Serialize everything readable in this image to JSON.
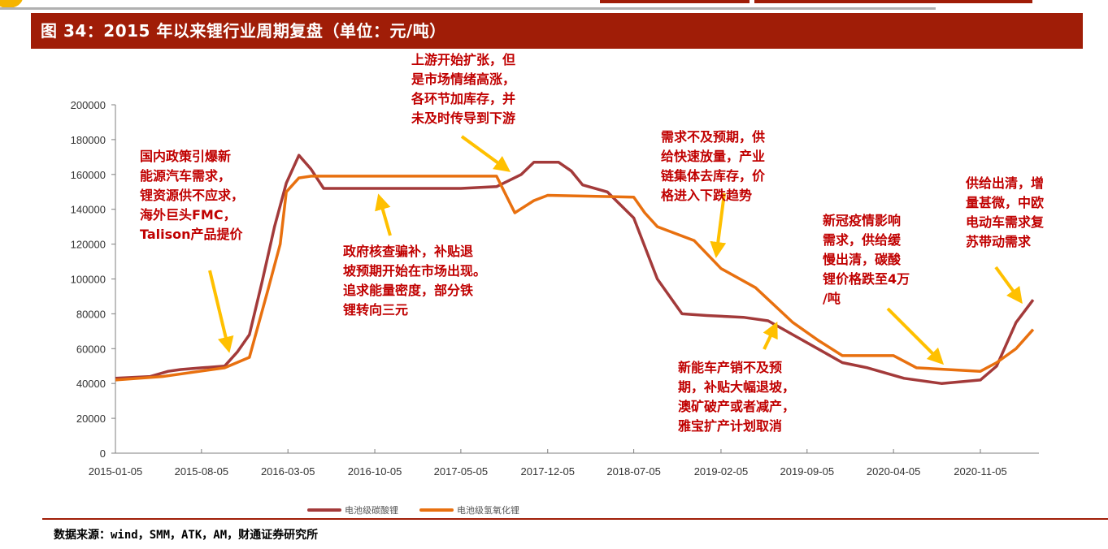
{
  "header": {
    "title": "图 34：2015 年以来锂行业周期复盘（单位：元/吨）"
  },
  "colors": {
    "title_bar": "#a01d07",
    "series_carbonate": "#a33a3a",
    "series_hydroxide": "#e8700f",
    "arrow": "#ffc000",
    "annotation_text": "#c00000"
  },
  "chart_data": {
    "type": "line",
    "title": "2015 年以来锂行业周期复盘（单位：元/吨）",
    "xlabel": "",
    "ylabel": "",
    "ylim": [
      0,
      200000
    ],
    "yticks": [
      0,
      20000,
      40000,
      60000,
      80000,
      100000,
      120000,
      140000,
      160000,
      180000,
      200000
    ],
    "categories": [
      "2015-01-05",
      "2015-08-05",
      "2016-03-05",
      "2016-10-05",
      "2017-05-05",
      "2017-12-05",
      "2018-07-05",
      "2019-02-05",
      "2019-09-05",
      "2020-04-05",
      "2020-11-05"
    ],
    "grid": false,
    "legend_position": "bottom",
    "series": [
      {
        "name": "电池级碳酸锂",
        "points": [
          [
            "2015-01-05",
            43000
          ],
          [
            "2015-04-01",
            44000
          ],
          [
            "2015-05-15",
            47000
          ],
          [
            "2015-06-15",
            48000
          ],
          [
            "2015-08-05",
            49000
          ],
          [
            "2015-10-01",
            50000
          ],
          [
            "2015-11-01",
            58000
          ],
          [
            "2015-12-01",
            68000
          ],
          [
            "2016-01-01",
            98000
          ],
          [
            "2016-02-01",
            130000
          ],
          [
            "2016-03-01",
            155000
          ],
          [
            "2016-04-01",
            171000
          ],
          [
            "2016-05-01",
            163000
          ],
          [
            "2016-06-01",
            152000
          ],
          [
            "2017-05-05",
            152000
          ],
          [
            "2017-08-01",
            153000
          ],
          [
            "2017-10-01",
            160000
          ],
          [
            "2017-11-01",
            167000
          ],
          [
            "2018-01-01",
            167000
          ],
          [
            "2018-02-01",
            162000
          ],
          [
            "2018-03-01",
            154000
          ],
          [
            "2018-05-01",
            150000
          ],
          [
            "2018-07-05",
            135000
          ],
          [
            "2018-09-01",
            100000
          ],
          [
            "2018-11-01",
            80000
          ],
          [
            "2019-01-01",
            79000
          ],
          [
            "2019-04-01",
            78000
          ],
          [
            "2019-06-01",
            76000
          ],
          [
            "2019-08-01",
            68000
          ],
          [
            "2019-10-01",
            60000
          ],
          [
            "2019-12-01",
            52000
          ],
          [
            "2020-02-01",
            49000
          ],
          [
            "2020-05-01",
            43000
          ],
          [
            "2020-08-01",
            40000
          ],
          [
            "2020-11-05",
            42000
          ],
          [
            "2020-12-15",
            50000
          ],
          [
            "2021-02-01",
            75000
          ],
          [
            "2021-03-15",
            88000
          ]
        ]
      },
      {
        "name": "电池级氢氧化锂",
        "points": [
          [
            "2015-01-05",
            42000
          ],
          [
            "2015-05-01",
            44000
          ],
          [
            "2015-07-01",
            46000
          ],
          [
            "2015-10-01",
            49000
          ],
          [
            "2015-12-01",
            55000
          ],
          [
            "2016-01-15",
            93000
          ],
          [
            "2016-02-15",
            120000
          ],
          [
            "2016-03-01",
            150000
          ],
          [
            "2016-04-01",
            158000
          ],
          [
            "2016-05-01",
            159000
          ],
          [
            "2017-08-01",
            159000
          ],
          [
            "2017-09-15",
            138000
          ],
          [
            "2017-11-01",
            145000
          ],
          [
            "2017-12-05",
            148000
          ],
          [
            "2018-07-05",
            147000
          ],
          [
            "2018-08-01",
            138000
          ],
          [
            "2018-09-01",
            130000
          ],
          [
            "2018-12-01",
            122000
          ],
          [
            "2019-02-05",
            106000
          ],
          [
            "2019-05-01",
            95000
          ],
          [
            "2019-08-01",
            75000
          ],
          [
            "2019-10-01",
            65000
          ],
          [
            "2019-12-01",
            56000
          ],
          [
            "2020-04-05",
            56000
          ],
          [
            "2020-06-01",
            49000
          ],
          [
            "2020-11-05",
            47000
          ],
          [
            "2020-12-15",
            52000
          ],
          [
            "2021-02-01",
            60000
          ],
          [
            "2021-03-15",
            71000
          ]
        ]
      }
    ],
    "annotations": [
      "国内政策引爆新能源汽车需求，锂资源供不应求，海外巨头FMC，Talison产品提价",
      "政府核查骗补，补贴退坡预期开始在市场出现。追求能量密度，部分铁锂转向三元",
      "上游开始扩张，但是市场情绪高涨，各环节加库存，并未及时传导到下游",
      "需求不及预期，供给快速放量，产业链集体去库存，价格进入下跌趋势",
      "新能车产销不及预期，补贴大幅退坡，澳矿破产或者减产，雅宝扩产计划取消",
      "新冠疫情影响需求，供给缓慢出清，碳酸锂价格跌至4万/吨",
      "供给出清，增量甚微，中欧电动车需求复苏带动需求"
    ]
  },
  "annotations": {
    "a1": "国内政策引爆新\n能源汽车需求，\n锂资源供不应求，\n海外巨头FMC，\nTalison产品提价",
    "a2": "政府核查骗补，补贴退\n坡预期开始在市场出现。\n追求能量密度，部分铁\n锂转向三元",
    "a3": "上游开始扩张，但\n是市场情绪高涨，\n各环节加库存，并\n未及时传导到下游",
    "a4": "需求不及预期，供\n给快速放量，产业\n链集体去库存，价\n格进入下跌趋势",
    "a5": "新能车产销不及预\n期，补贴大幅退坡，\n澳矿破产或者减产，\n雅宝扩产计划取消",
    "a6": "新冠疫情影响\n需求，供给缓\n慢出清，碳酸\n锂价格跌至4万\n/吨",
    "a7": "供给出清，增\n量甚微，中欧\n电动车需求复\n苏带动需求"
  },
  "y_axis": {
    "labels": [
      "200000",
      "180000",
      "160000",
      "140000",
      "120000",
      "100000",
      "80000",
      "60000",
      "40000",
      "20000",
      "0"
    ]
  },
  "x_axis": {
    "labels": [
      "2015-01-05",
      "2015-08-05",
      "2016-03-05",
      "2016-10-05",
      "2017-05-05",
      "2017-12-05",
      "2018-07-05",
      "2019-02-05",
      "2019-09-05",
      "2020-04-05",
      "2020-11-05"
    ]
  },
  "legend": {
    "items": [
      {
        "label": "电池级碳酸锂"
      },
      {
        "label": "电池级氢氧化锂"
      }
    ]
  },
  "footer": {
    "source": "数据来源：wind，SMM，ATK，AM，财通证券研究所"
  }
}
